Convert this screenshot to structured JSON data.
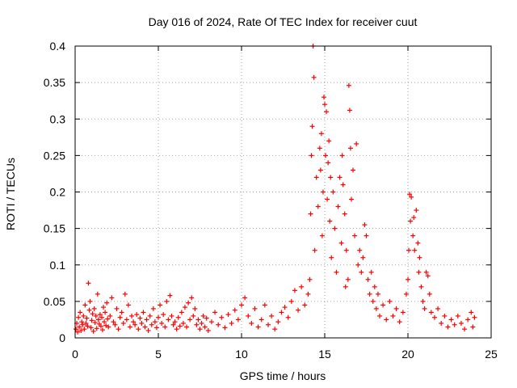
{
  "chart_data": {
    "type": "scatter",
    "title": "Day 016 of 2024, Rate Of TEC Index for receiver cuut",
    "xlabel": "GPS time / hours",
    "ylabel": "ROTI / TECUs",
    "xlim": [
      0,
      25
    ],
    "ylim": [
      0,
      0.4
    ],
    "xticks": [
      0,
      5,
      10,
      15,
      20,
      25
    ],
    "xtick_labels": [
      "0",
      "5",
      "10",
      "15",
      "20",
      "25"
    ],
    "yticks": [
      0,
      0.05,
      0.1,
      0.15,
      0.2,
      0.25,
      0.3,
      0.35,
      0.4
    ],
    "ytick_labels": [
      "0",
      "0.05",
      "0.1",
      "0.15",
      "0.2",
      "0.25",
      "0.3",
      "0.35",
      "0.4"
    ],
    "grid": true,
    "marker": "+",
    "colors": {
      "series": "#ff0000",
      "grid": "#a0a0a0",
      "axis": "#000000"
    },
    "series": [
      {
        "name": "ROTI",
        "points": [
          [
            0.05,
            0.012
          ],
          [
            0.1,
            0.02
          ],
          [
            0.15,
            0.008
          ],
          [
            0.2,
            0.028
          ],
          [
            0.25,
            0.015
          ],
          [
            0.3,
            0.035
          ],
          [
            0.35,
            0.01
          ],
          [
            0.4,
            0.022
          ],
          [
            0.45,
            0.018
          ],
          [
            0.5,
            0.03
          ],
          [
            0.55,
            0.012
          ],
          [
            0.6,
            0.045
          ],
          [
            0.65,
            0.02
          ],
          [
            0.7,
            0.027
          ],
          [
            0.75,
            0.016
          ],
          [
            0.8,
            0.075
          ],
          [
            0.85,
            0.038
          ],
          [
            0.9,
            0.05
          ],
          [
            0.95,
            0.014
          ],
          [
            1.0,
            0.024
          ],
          [
            1.05,
            0.033
          ],
          [
            1.1,
            0.009
          ],
          [
            1.15,
            0.04
          ],
          [
            1.2,
            0.021
          ],
          [
            1.25,
            0.03
          ],
          [
            1.3,
            0.013
          ],
          [
            1.35,
            0.06
          ],
          [
            1.4,
            0.025
          ],
          [
            1.45,
            0.019
          ],
          [
            1.5,
            0.032
          ],
          [
            1.55,
            0.016
          ],
          [
            1.6,
            0.028
          ],
          [
            1.65,
            0.011
          ],
          [
            1.7,
            0.042
          ],
          [
            1.75,
            0.022
          ],
          [
            1.8,
            0.035
          ],
          [
            1.85,
            0.017
          ],
          [
            1.9,
            0.048
          ],
          [
            1.95,
            0.026
          ],
          [
            2.0,
            0.015
          ],
          [
            2.1,
            0.03
          ],
          [
            2.2,
            0.055
          ],
          [
            2.3,
            0.022
          ],
          [
            2.4,
            0.018
          ],
          [
            2.5,
            0.04
          ],
          [
            2.6,
            0.012
          ],
          [
            2.7,
            0.028
          ],
          [
            2.8,
            0.035
          ],
          [
            2.9,
            0.02
          ],
          [
            3.0,
            0.06
          ],
          [
            3.1,
            0.025
          ],
          [
            3.2,
            0.045
          ],
          [
            3.3,
            0.015
          ],
          [
            3.4,
            0.03
          ],
          [
            3.5,
            0.022
          ],
          [
            3.6,
            0.018
          ],
          [
            3.7,
            0.032
          ],
          [
            3.8,
            0.012
          ],
          [
            3.9,
            0.027
          ],
          [
            4.0,
            0.02
          ],
          [
            4.1,
            0.035
          ],
          [
            4.2,
            0.015
          ],
          [
            4.3,
            0.025
          ],
          [
            4.4,
            0.01
          ],
          [
            4.5,
            0.03
          ],
          [
            4.6,
            0.018
          ],
          [
            4.7,
            0.04
          ],
          [
            4.8,
            0.022
          ],
          [
            4.9,
            0.014
          ],
          [
            5.0,
            0.028
          ],
          [
            5.1,
            0.045
          ],
          [
            5.2,
            0.02
          ],
          [
            5.3,
            0.032
          ],
          [
            5.4,
            0.015
          ],
          [
            5.5,
            0.05
          ],
          [
            5.6,
            0.025
          ],
          [
            5.7,
            0.058
          ],
          [
            5.8,
            0.03
          ],
          [
            5.9,
            0.018
          ],
          [
            6.0,
            0.022
          ],
          [
            6.1,
            0.012
          ],
          [
            6.2,
            0.028
          ],
          [
            6.3,
            0.016
          ],
          [
            6.4,
            0.035
          ],
          [
            6.5,
            0.02
          ],
          [
            6.6,
            0.042
          ],
          [
            6.7,
            0.015
          ],
          [
            6.8,
            0.048
          ],
          [
            6.9,
            0.025
          ],
          [
            7.0,
            0.055
          ],
          [
            7.1,
            0.03
          ],
          [
            7.2,
            0.04
          ],
          [
            7.3,
            0.018
          ],
          [
            7.4,
            0.025
          ],
          [
            7.5,
            0.012
          ],
          [
            7.6,
            0.02
          ],
          [
            7.7,
            0.03
          ],
          [
            7.8,
            0.015
          ],
          [
            7.9,
            0.027
          ],
          [
            8.0,
            0.01
          ],
          [
            8.2,
            0.022
          ],
          [
            8.4,
            0.035
          ],
          [
            8.6,
            0.018
          ],
          [
            8.8,
            0.028
          ],
          [
            9.0,
            0.014
          ],
          [
            9.2,
            0.032
          ],
          [
            9.4,
            0.02
          ],
          [
            9.6,
            0.038
          ],
          [
            9.8,
            0.025
          ],
          [
            10.0,
            0.045
          ],
          [
            10.2,
            0.055
          ],
          [
            10.4,
            0.03
          ],
          [
            10.6,
            0.02
          ],
          [
            10.8,
            0.04
          ],
          [
            11.0,
            0.015
          ],
          [
            11.2,
            0.025
          ],
          [
            11.4,
            0.045
          ],
          [
            11.6,
            0.018
          ],
          [
            11.8,
            0.03
          ],
          [
            12.0,
            0.012
          ],
          [
            12.2,
            0.022
          ],
          [
            12.4,
            0.035
          ],
          [
            12.6,
            0.042
          ],
          [
            12.8,
            0.028
          ],
          [
            13.0,
            0.05
          ],
          [
            13.2,
            0.065
          ],
          [
            13.4,
            0.038
          ],
          [
            13.6,
            0.07
          ],
          [
            13.8,
            0.045
          ],
          [
            14.0,
            0.06
          ],
          [
            14.1,
            0.08
          ],
          [
            14.15,
            0.17
          ],
          [
            14.2,
            0.25
          ],
          [
            14.25,
            0.29
          ],
          [
            14.3,
            0.4
          ],
          [
            14.35,
            0.357
          ],
          [
            14.4,
            0.12
          ],
          [
            14.5,
            0.22
          ],
          [
            14.6,
            0.18
          ],
          [
            14.7,
            0.26
          ],
          [
            14.75,
            0.23
          ],
          [
            14.8,
            0.28
          ],
          [
            14.85,
            0.14
          ],
          [
            14.9,
            0.2
          ],
          [
            14.95,
            0.33
          ],
          [
            15.0,
            0.32
          ],
          [
            15.05,
            0.25
          ],
          [
            15.1,
            0.31
          ],
          [
            15.15,
            0.19
          ],
          [
            15.2,
            0.24
          ],
          [
            15.25,
            0.27
          ],
          [
            15.3,
            0.16
          ],
          [
            15.35,
            0.22
          ],
          [
            15.4,
            0.11
          ],
          [
            15.5,
            0.2
          ],
          [
            15.6,
            0.15
          ],
          [
            15.7,
            0.09
          ],
          [
            15.8,
            0.18
          ],
          [
            15.9,
            0.22
          ],
          [
            16.0,
            0.13
          ],
          [
            16.05,
            0.25
          ],
          [
            16.1,
            0.21
          ],
          [
            16.2,
            0.17
          ],
          [
            16.25,
            0.07
          ],
          [
            16.3,
            0.12
          ],
          [
            16.4,
            0.08
          ],
          [
            16.45,
            0.346
          ],
          [
            16.5,
            0.312
          ],
          [
            16.55,
            0.26
          ],
          [
            16.6,
            0.19
          ],
          [
            16.7,
            0.23
          ],
          [
            16.8,
            0.14
          ],
          [
            16.9,
            0.266
          ],
          [
            17.0,
            0.1
          ],
          [
            17.1,
            0.12
          ],
          [
            17.2,
            0.09
          ],
          [
            17.3,
            0.11
          ],
          [
            17.4,
            0.155
          ],
          [
            17.5,
            0.14
          ],
          [
            17.6,
            0.08
          ],
          [
            17.7,
            0.06
          ],
          [
            17.8,
            0.09
          ],
          [
            17.9,
            0.05
          ],
          [
            18.0,
            0.07
          ],
          [
            18.1,
            0.04
          ],
          [
            18.2,
            0.06
          ],
          [
            18.3,
            0.03
          ],
          [
            18.5,
            0.045
          ],
          [
            18.7,
            0.025
          ],
          [
            18.9,
            0.05
          ],
          [
            19.1,
            0.03
          ],
          [
            19.3,
            0.04
          ],
          [
            19.5,
            0.022
          ],
          [
            19.7,
            0.035
          ],
          [
            19.9,
            0.06
          ],
          [
            20.0,
            0.08
          ],
          [
            20.05,
            0.12
          ],
          [
            20.1,
            0.197
          ],
          [
            20.15,
            0.16
          ],
          [
            20.2,
            0.193
          ],
          [
            20.3,
            0.14
          ],
          [
            20.35,
            0.165
          ],
          [
            20.4,
            0.12
          ],
          [
            20.5,
            0.175
          ],
          [
            20.6,
            0.13
          ],
          [
            20.65,
            0.09
          ],
          [
            20.7,
            0.11
          ],
          [
            20.8,
            0.07
          ],
          [
            20.9,
            0.05
          ],
          [
            21.0,
            0.04
          ],
          [
            21.1,
            0.09
          ],
          [
            21.2,
            0.085
          ],
          [
            21.3,
            0.06
          ],
          [
            21.4,
            0.035
          ],
          [
            21.6,
            0.028
          ],
          [
            21.8,
            0.04
          ],
          [
            22.0,
            0.02
          ],
          [
            22.2,
            0.03
          ],
          [
            22.4,
            0.015
          ],
          [
            22.6,
            0.025
          ],
          [
            22.8,
            0.018
          ],
          [
            23.0,
            0.03
          ],
          [
            23.2,
            0.02
          ],
          [
            23.4,
            0.012
          ],
          [
            23.6,
            0.025
          ],
          [
            23.8,
            0.035
          ],
          [
            23.9,
            0.015
          ],
          [
            24.0,
            0.028
          ]
        ]
      }
    ]
  }
}
